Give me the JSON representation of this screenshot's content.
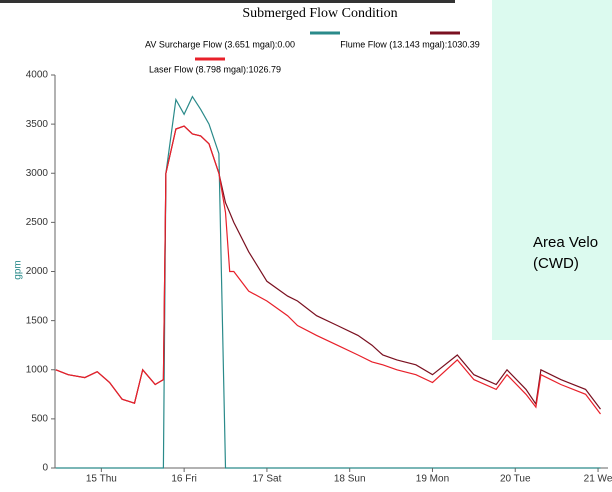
{
  "chart_data": {
    "type": "line",
    "title": "Submerged Flow Condition",
    "y_label": "gpm",
    "x": [
      14.45,
      14.6,
      14.8,
      14.95,
      15.1,
      15.25,
      15.4,
      15.5,
      15.65,
      15.75,
      15.78,
      15.9,
      16.0,
      16.1,
      16.2,
      16.3,
      16.42,
      16.5,
      16.55,
      16.6,
      16.78,
      17.0,
      17.25,
      17.37,
      17.6,
      17.85,
      18.1,
      18.27,
      18.4,
      18.57,
      18.8,
      19.0,
      19.3,
      19.5,
      19.77,
      19.9,
      20.13,
      20.25,
      20.31,
      20.55,
      20.85,
      21.03
    ],
    "series": [
      {
        "name": "AV Surcharge Flow (3.651 mgal):0.00",
        "color": "#2a8a8a",
        "values": [
          0,
          0,
          0,
          0,
          0,
          0,
          0,
          0,
          0,
          0,
          3000,
          3750,
          3600,
          3780,
          3650,
          3500,
          3200,
          0,
          0,
          0,
          0,
          0,
          0,
          0,
          0,
          0,
          0,
          0,
          0,
          0,
          0,
          0,
          0,
          0,
          0,
          0,
          0,
          0,
          0,
          0,
          0,
          0
        ]
      },
      {
        "name": "Flume Flow (13.143 mgal):1030.39",
        "color": "#7a1020",
        "values": [
          1000,
          950,
          920,
          980,
          870,
          700,
          660,
          1000,
          850,
          900,
          3000,
          3450,
          3480,
          3400,
          3380,
          3300,
          3000,
          2700,
          2600,
          2500,
          2200,
          1900,
          1750,
          1700,
          1550,
          1450,
          1350,
          1250,
          1150,
          1100,
          1050,
          950,
          1150,
          950,
          850,
          1000,
          800,
          650,
          1000,
          900,
          800,
          600
        ]
      },
      {
        "name": "Laser Flow (8.798 mgal):1026.79",
        "color": "#e8202a",
        "values": [
          1000,
          950,
          920,
          980,
          870,
          700,
          660,
          1000,
          850,
          900,
          3000,
          3450,
          3480,
          3400,
          3380,
          3300,
          3000,
          2600,
          2000,
          2000,
          1800,
          1700,
          1550,
          1450,
          1350,
          1250,
          1150,
          1080,
          1050,
          1000,
          950,
          870,
          1100,
          900,
          800,
          950,
          750,
          620,
          950,
          850,
          750,
          550
        ]
      }
    ],
    "xlim": [
      14.44,
      21.06
    ],
    "xticks": [
      {
        "value": 15,
        "label": "15 Thu"
      },
      {
        "value": 16,
        "label": "16 Fri"
      },
      {
        "value": 17,
        "label": "17 Sat"
      },
      {
        "value": 18,
        "label": "18 Sun"
      },
      {
        "value": 19,
        "label": "19 Mon"
      },
      {
        "value": 20,
        "label": "20 Tue"
      },
      {
        "value": 21,
        "label": "21 We"
      }
    ],
    "ylim": [
      0,
      4000
    ],
    "yticks": [
      0,
      500,
      1000,
      1500,
      2000,
      2500,
      3000,
      3500,
      4000
    ],
    "grid": false
  },
  "overlay": {
    "line1": "Area Velo",
    "line2": "(CWD)"
  }
}
